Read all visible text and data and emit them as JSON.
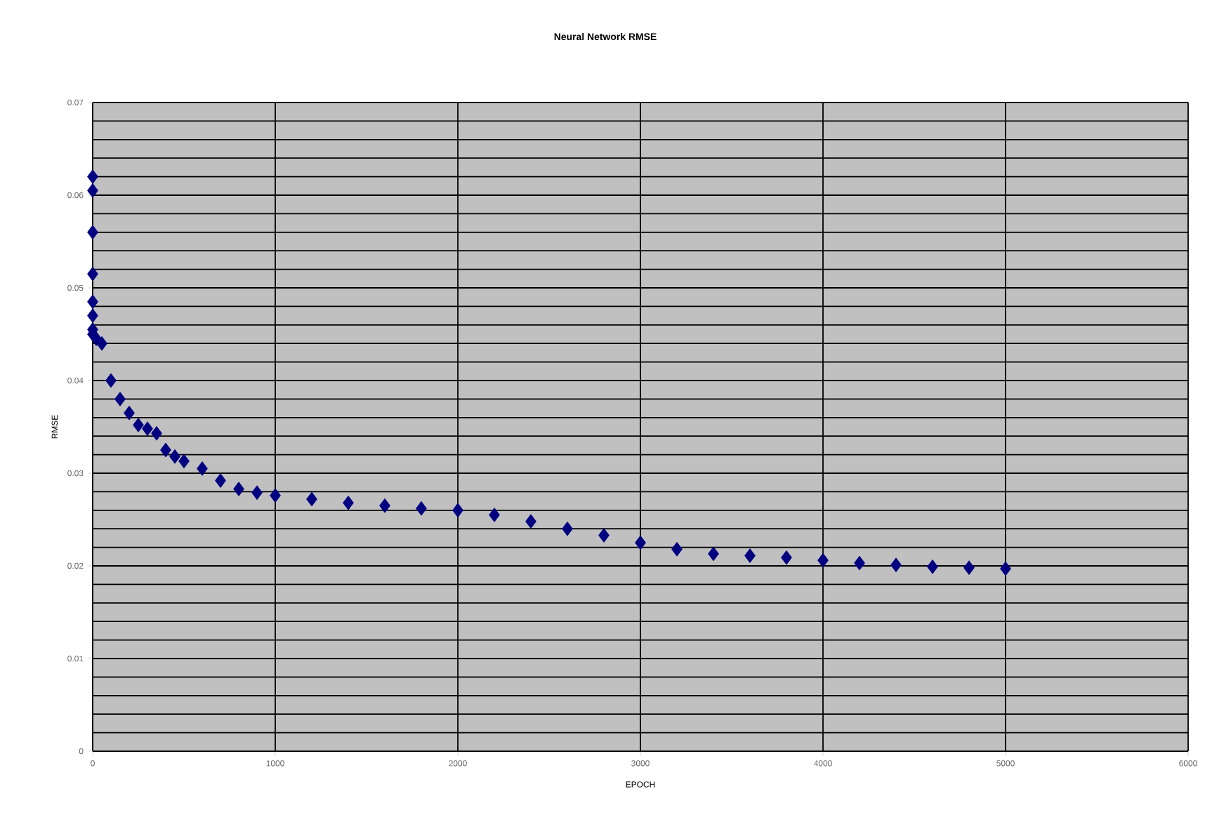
{
  "chart_data": {
    "type": "scatter",
    "title": "Neural Network RMSE",
    "xlabel": "EPOCH",
    "ylabel": "RMSE",
    "xlim": [
      0,
      6000
    ],
    "xticks": [
      0,
      1000,
      2000,
      3000,
      4000,
      5000,
      6000
    ],
    "ylim": [
      0,
      0.07
    ],
    "yticks": [
      0,
      0.01,
      0.02,
      0.03,
      0.04,
      0.05,
      0.06,
      0.07
    ],
    "grid": true,
    "marker": "diamond",
    "series": [
      {
        "color": "#000080",
        "x": [
          0,
          0,
          0,
          0,
          0,
          0,
          0,
          0,
          20,
          50,
          100,
          150,
          200,
          250,
          300,
          350,
          400,
          450,
          500,
          600,
          700,
          800,
          900,
          1000,
          1200,
          1400,
          1600,
          1800,
          2000,
          2200,
          2400,
          2600,
          2800,
          3000,
          3200,
          3400,
          3600,
          3800,
          4000,
          4200,
          4400,
          4600,
          4800,
          5000
        ],
        "values": [
          0.062,
          0.0605,
          0.056,
          0.0515,
          0.0485,
          0.047,
          0.0455,
          0.045,
          0.0445,
          0.044,
          0.04,
          0.038,
          0.0365,
          0.0352,
          0.0348,
          0.0343,
          0.0325,
          0.0318,
          0.0313,
          0.0305,
          0.0292,
          0.0283,
          0.0279,
          0.0276,
          0.0272,
          0.0268,
          0.0265,
          0.0262,
          0.026,
          0.0255,
          0.0248,
          0.024,
          0.0233,
          0.0225,
          0.0218,
          0.0213,
          0.0211,
          0.0209,
          0.0206,
          0.0203,
          0.0201,
          0.0199,
          0.0198,
          0.0197
        ]
      }
    ]
  }
}
